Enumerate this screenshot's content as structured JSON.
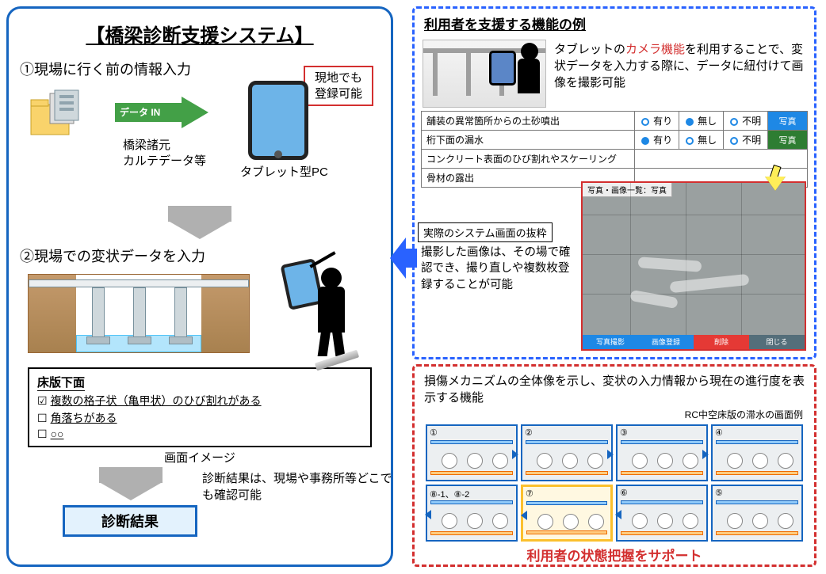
{
  "left": {
    "title": "【橋梁診断支援システム】",
    "step1": "①現場に行く前の情報入力",
    "red_box_l1": "現地でも",
    "red_box_l2": "登録可能",
    "data_in": "データ IN",
    "caption_src": "橋梁諸元\nカルテデータ等",
    "caption_tablet": "タブレット型PC",
    "step2": "②現場での変状データを入力",
    "card_header": "床版下面",
    "card_item1": "複数の格子状（亀甲状）のひび割れがある",
    "card_item2": "角落ちがある",
    "card_item3": "○○",
    "card_caption": "画面イメージ",
    "note_result": "診断結果は、現場や事務所等どこでも確認可能",
    "result_box": "診断結果"
  },
  "right_top": {
    "title": "利用者を支援する機能の例",
    "desc_prefix": "タブレットの",
    "desc_red": "カメラ機能",
    "desc_suffix": "を利用することで、変状データを入力する際に、データに紐付けて画像を撮影可能",
    "form": {
      "rows": [
        {
          "label": "舗装の異常箇所からの土砂噴出",
          "sel": 1,
          "btn": "写真",
          "btn_cls": "btn-blue"
        },
        {
          "label": "桁下面の漏水",
          "sel": 0,
          "btn": "写真",
          "btn_cls": "btn-green"
        },
        {
          "label": "コンクリート表面のひび割れやスケーリング",
          "sel": -1,
          "btn": "",
          "btn_cls": ""
        },
        {
          "label": "骨材の露出",
          "sel": -1,
          "btn": "",
          "btn_cls": ""
        }
      ],
      "opts": [
        "有り",
        "無し",
        "不明"
      ]
    },
    "excerpt_label": "実際のシステム画面の抜粋",
    "left_note": "撮影した画像は、その場で確認でき、撮り直しや複数枚登録することが可能",
    "photo_title": "写真・画像一覧：写真",
    "photo_btns": [
      "写真撮影",
      "画像登録",
      "削除",
      "閉じる"
    ],
    "photo_btn_colors": [
      "#1e88e5",
      "#1e88e5",
      "#e53935",
      "#546e7a"
    ]
  },
  "right_bottom": {
    "desc": "損傷メカニズムの全体像を示し、変状の入力情報から現在の進行度を表示する機能",
    "caption": "RC中空床版の滞水の画面例",
    "cells": [
      "①",
      "②",
      "③",
      "④",
      "⑧-1、⑧-2",
      "⑦",
      "⑥",
      "⑤"
    ],
    "highlight_index": 5,
    "support_msg": "利用者の状態把握をサポート"
  }
}
